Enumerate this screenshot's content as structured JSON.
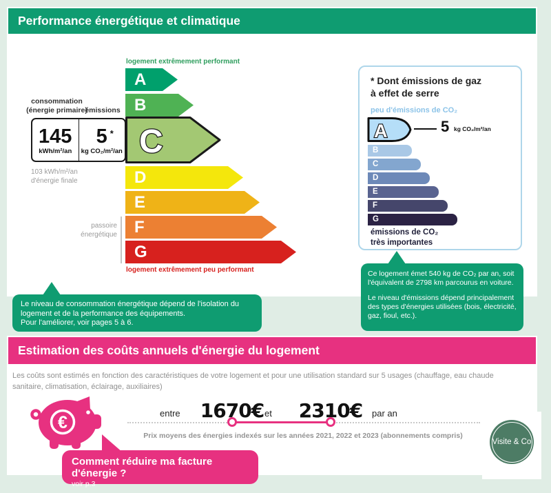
{
  "colors": {
    "page_background": "#e0ede5",
    "energy_header_green": "#0f9c71",
    "costs_header_pink": "#e73180",
    "co2_panel_border_blue": "#aed6ea",
    "logo_green": "#4d7c65",
    "red_warning_text": "#d7211e"
  },
  "energy_section": {
    "header": "Performance énergétique et climatique",
    "scale": {
      "top_label": "logement extrêmement performant",
      "bottom_label": "logement extrêmement peu performant",
      "passoire_line1": "passoire",
      "passoire_line2": "énergétique",
      "classes": [
        {
          "letter": "A",
          "color": "#00a06c"
        },
        {
          "letter": "B",
          "color": "#4fb254"
        },
        {
          "letter": "C",
          "color": "#a3c873",
          "current": true
        },
        {
          "letter": "D",
          "color": "#f4e70c"
        },
        {
          "letter": "E",
          "color": "#efb317"
        },
        {
          "letter": "F",
          "color": "#ec8033"
        },
        {
          "letter": "G",
          "color": "#d7211e"
        }
      ]
    },
    "consumption": {
      "label_line1": "consommation",
      "label_line2": "(énergie primaire)",
      "value": "145",
      "unit": "kWh/m²/an"
    },
    "emissions": {
      "label": "émissions",
      "value": "5",
      "asterisk": "*",
      "unit": "kg CO₂/m²/an"
    },
    "final_energy": {
      "line1": "103 kWh/m²/an",
      "line2": "d'énergie finale"
    }
  },
  "co2_panel": {
    "title_line1": "* Dont émissions de gaz",
    "title_line2": "à effet de serre",
    "low_label": "peu d'émissions de CO₂",
    "highlight": {
      "letter": "A",
      "color": "#b5def8"
    },
    "value": "5",
    "value_unit": "kg CO₂/m²/an",
    "bars": [
      {
        "letter": "B",
        "color": "#a9c8e6"
      },
      {
        "letter": "C",
        "color": "#83a6cf"
      },
      {
        "letter": "D",
        "color": "#6d89b8"
      },
      {
        "letter": "E",
        "color": "#596390"
      },
      {
        "letter": "F",
        "color": "#45466b"
      },
      {
        "letter": "G",
        "color": "#2b2244"
      }
    ],
    "high_label_line1": "émissions de CO₂",
    "high_label_line2": "très importantes"
  },
  "callouts": {
    "left_line1": "Le niveau de consommation énergétique dépend de l'isolation du logement et de la performance des équipements.",
    "left_line2": "Pour l'améliorer, voir pages 5 à 6.",
    "right_para1": "Ce logement émet 540 kg de CO₂ par an, soit l'équivalent de 2798 km parcourus en voiture.",
    "right_para2": "Le niveau d'émissions dépend principalement des types d'énergies utilisées (bois, électricité, gaz, fioul, etc.)."
  },
  "costs_section": {
    "header": "Estimation des coûts annuels d'énergie du logement",
    "intro": "Les coûts sont estimés en fonction des caractéristiques de votre logement et pour une utilisation standard sur 5 usages (chauffage, eau chaude sanitaire, climatisation, éclairage, auxiliaires)",
    "between_word": "entre",
    "min_cost": "1670€",
    "and_word": "et",
    "max_cost": "2310€",
    "per_year_word": "par an",
    "note": "Prix moyens des énergies indexés sur les années 2021, 2022 et 2023 (abonnements compris)",
    "cta_title": "Comment réduire ma facture d'énergie ?",
    "cta_sub": "voir p.3"
  },
  "logo": {
    "text": "Visite & Co"
  }
}
